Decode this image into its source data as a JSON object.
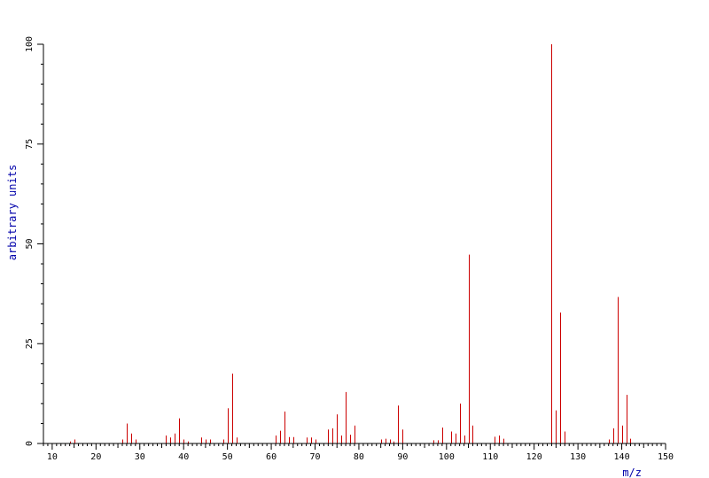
{
  "chart_data": {
    "type": "bar",
    "title": "",
    "xlabel": "m/z",
    "ylabel": "arbitrary units",
    "xlim": [
      8,
      150
    ],
    "ylim": [
      0,
      100
    ],
    "x_ticks": [
      10,
      20,
      30,
      40,
      50,
      60,
      70,
      80,
      90,
      100,
      110,
      120,
      130,
      140,
      150
    ],
    "y_ticks": [
      0,
      25,
      50,
      75,
      100
    ],
    "grid": false,
    "colors": {
      "peaks": "#cc0000",
      "axis_title": "#0000aa",
      "axes": "#000000"
    },
    "series": [
      {
        "x": [
          14,
          15,
          26,
          27,
          28,
          29,
          36,
          37,
          38,
          39,
          40,
          41,
          44,
          45,
          46,
          49,
          50,
          51,
          52,
          61,
          62,
          63,
          64,
          65,
          68,
          69,
          70,
          73,
          74,
          75,
          76,
          77,
          78,
          79,
          85,
          86,
          87,
          88,
          89,
          90,
          97,
          98,
          99,
          101,
          102,
          103,
          104,
          105,
          106,
          111,
          112,
          113,
          124,
          125,
          126,
          127,
          137,
          138,
          139,
          140,
          141,
          142
        ],
        "y": [
          0.5,
          1,
          1,
          5,
          2.5,
          1,
          2,
          1.5,
          2.5,
          6.3,
          1,
          0.5,
          1.5,
          1,
          1,
          1,
          8.8,
          17.5,
          1.5,
          2,
          3.2,
          8,
          1.6,
          1.6,
          1.5,
          1.5,
          1,
          3.5,
          3.8,
          7.3,
          2,
          12.9,
          2.2,
          4.5,
          1,
          1.2,
          1,
          0.5,
          9.5,
          3.5,
          0.8,
          0.8,
          4,
          3,
          2.5,
          10,
          2,
          47.3,
          4.5,
          1.7,
          2,
          1.2,
          100,
          8.3,
          32.8,
          3,
          1,
          3.8,
          36.7,
          4.5,
          12.2,
          1.2
        ]
      }
    ]
  }
}
